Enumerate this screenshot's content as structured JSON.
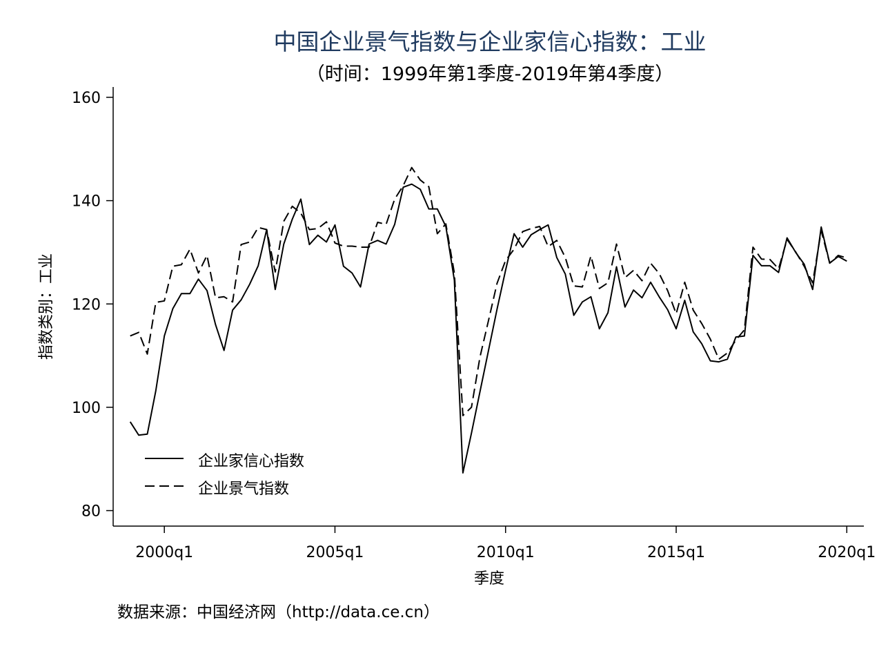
{
  "chart_data": {
    "type": "line",
    "title": "中国企业景气指数与企业家信心指数：工业",
    "subtitle": "（时间：1999年第1季度-2019年第4季度）",
    "xlabel": "季度",
    "ylabel": "指数类别：工业",
    "source_note": "数据来源：中国经济网（http://data.ce.cn）",
    "x_start": "1999q1",
    "xlim": [
      "1998q3",
      "2020q3"
    ],
    "ylim": [
      77,
      162
    ],
    "y_ticks": [
      80,
      100,
      120,
      140,
      160
    ],
    "x_tick_labels": [
      "2000q1",
      "2005q1",
      "2010q1",
      "2015q1",
      "2020q1"
    ],
    "grid": false,
    "legend_position": "bottom-left",
    "colors": {
      "title": "#1f3a5f",
      "lines": "#000000",
      "axis": "#000000"
    },
    "series": [
      {
        "name": "企业家信心指数",
        "style": "solid",
        "values": [
          97.2,
          94.6,
          94.8,
          103.2,
          113.8,
          119.1,
          122.0,
          122.0,
          124.8,
          122.6,
          116.0,
          111.0,
          118.8,
          120.8,
          123.8,
          127.4,
          134.4,
          122.8,
          131.6,
          136.4,
          140.3,
          131.5,
          133.3,
          132.0,
          135.3,
          127.3,
          126.0,
          123.3,
          131.6,
          132.3,
          131.6,
          135.4,
          142.6,
          143.2,
          142.2,
          138.4,
          138.4,
          135.0,
          124.6,
          87.3,
          95.0,
          103.0,
          111.0,
          119.0,
          126.5,
          133.6,
          131.0,
          133.4,
          134.4,
          135.3,
          129.0,
          125.8,
          117.8,
          120.4,
          121.4,
          115.2,
          118.3,
          127.2,
          119.4,
          122.7,
          121.2,
          124.2,
          121.4,
          118.9,
          115.2,
          120.7,
          114.6,
          112.3,
          109.0,
          108.8,
          109.3,
          113.6,
          113.8,
          129.4,
          127.4,
          127.4,
          126.1,
          132.8,
          130.0,
          127.7,
          122.8,
          134.9,
          127.9,
          129.2,
          128.3
        ]
      },
      {
        "name": "企业景气指数",
        "style": "dashed",
        "values": [
          113.8,
          114.5,
          110.3,
          120.3,
          120.6,
          127.3,
          127.6,
          130.6,
          126.0,
          129.4,
          121.2,
          121.4,
          120.4,
          131.5,
          132.0,
          134.8,
          134.4,
          126.2,
          136.0,
          138.9,
          137.6,
          134.4,
          134.6,
          135.9,
          131.8,
          131.2,
          131.2,
          131.0,
          131.0,
          135.8,
          135.4,
          140.3,
          142.9,
          146.4,
          144.0,
          142.7,
          133.6,
          135.5,
          126.0,
          98.4,
          100.0,
          109.7,
          116.8,
          124.0,
          128.4,
          130.6,
          134.0,
          134.6,
          135.0,
          131.1,
          132.3,
          129.0,
          123.5,
          123.3,
          129.3,
          123.0,
          124.1,
          131.6,
          125.1,
          126.5,
          124.5,
          127.9,
          125.9,
          122.6,
          118.1,
          124.2,
          118.8,
          116.2,
          113.2,
          109.3,
          110.5,
          113.0,
          115.0,
          131.0,
          128.7,
          128.6,
          126.8,
          132.5,
          130.1,
          127.3,
          124.1,
          134.2,
          127.9,
          129.4,
          128.9
        ]
      }
    ]
  }
}
